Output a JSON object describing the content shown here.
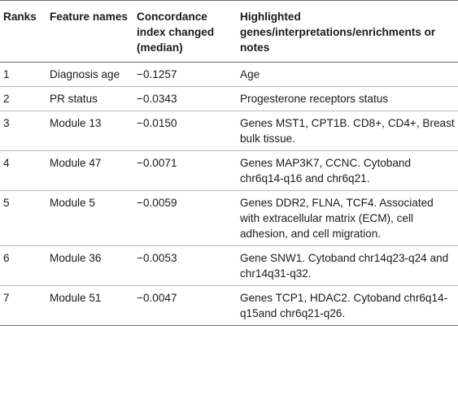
{
  "table": {
    "headers": [
      "Ranks",
      "Feature names",
      "Concordance index changed (median)",
      "Highlighted genes/interpretations/enrichments or notes"
    ],
    "rows": [
      {
        "rank": "1",
        "feature": "Diagnosis age",
        "ci": "−0.1257",
        "notes": "Age"
      },
      {
        "rank": "2",
        "feature": "PR status",
        "ci": "−0.0343",
        "notes": "Progesterone receptors status"
      },
      {
        "rank": "3",
        "feature": "Module 13",
        "ci": "−0.0150",
        "notes": "Genes MST1, CPT1B. CD8+, CD4+, Breast bulk tissue."
      },
      {
        "rank": "4",
        "feature": "Module 47",
        "ci": "−0.0071",
        "notes": "Genes MAP3K7, CCNC. Cytoband chr6q14-q16 and chr6q21."
      },
      {
        "rank": "5",
        "feature": "Module 5",
        "ci": "−0.0059",
        "notes": "Genes DDR2, FLNA, TCF4. Associated with extracellular matrix (ECM), cell adhesion, and cell migration."
      },
      {
        "rank": "6",
        "feature": "Module 36",
        "ci": "−0.0053",
        "notes": "Gene SNW1. Cytoband chr14q23-q24 and chr14q31-q32."
      },
      {
        "rank": "7",
        "feature": "Module 51",
        "ci": "−0.0047",
        "notes": "Genes TCP1, HDAC2. Cytoband chr6q14-q15and chr6q21-q26."
      }
    ]
  }
}
